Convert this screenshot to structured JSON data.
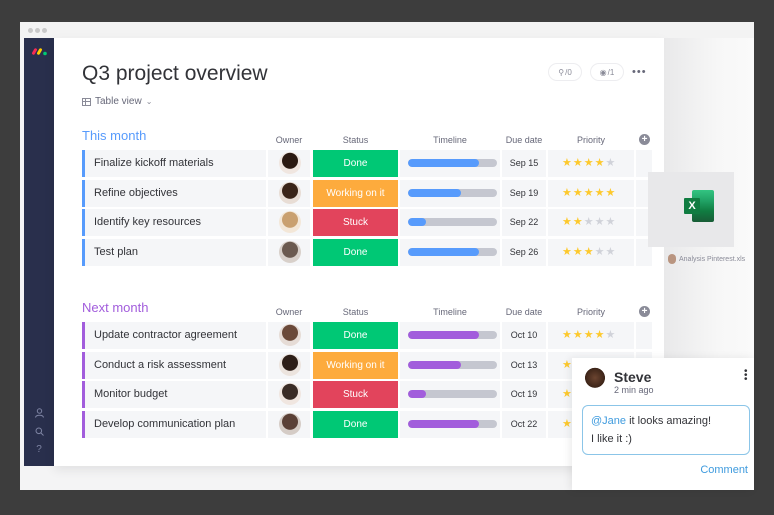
{
  "window": {
    "title": "Q3 project overview",
    "view_label": "Table view"
  },
  "header": {
    "activity_count": "/0",
    "viewers_count": "/1",
    "more_label": "•••"
  },
  "sidebar": {
    "icons": [
      "person-icon",
      "search-icon",
      "help-icon"
    ],
    "help_glyph": "?"
  },
  "columns": {
    "owner": "Owner",
    "status": "Status",
    "timeline": "Timeline",
    "due": "Due date",
    "priority": "Priority"
  },
  "colors": {
    "done": "#00c875",
    "working": "#fdab3d",
    "stuck": "#e2445c",
    "this_month": "#579bfc",
    "next_month": "#a25ddc"
  },
  "groups": [
    {
      "title": "This month",
      "color": "#579bfc",
      "rows": [
        {
          "name": "Finalize kickoff materials",
          "status": "Done",
          "timeline_pct": 80,
          "due": "Sep 15",
          "priority": 4
        },
        {
          "name": "Refine objectives",
          "status": "Working on it",
          "timeline_pct": 60,
          "due": "Sep 19",
          "priority": 5
        },
        {
          "name": "Identify key resources",
          "status": "Stuck",
          "timeline_pct": 20,
          "due": "Sep 22",
          "priority": 2
        },
        {
          "name": "Test plan",
          "status": "Done",
          "timeline_pct": 80,
          "due": "Sep 26",
          "priority": 3
        }
      ]
    },
    {
      "title": "Next month",
      "color": "#a25ddc",
      "rows": [
        {
          "name": "Update contractor agreement",
          "status": "Done",
          "timeline_pct": 80,
          "due": "Oct 10",
          "priority": 4
        },
        {
          "name": "Conduct a risk assessment",
          "status": "Working on it",
          "timeline_pct": 60,
          "due": "Oct 13",
          "priority": 1
        },
        {
          "name": "Monitor budget",
          "status": "Stuck",
          "timeline_pct": 20,
          "due": "Oct 19",
          "priority": 1
        },
        {
          "name": "Develop communication plan",
          "status": "Done",
          "timeline_pct": 80,
          "due": "Oct 22",
          "priority": 1
        }
      ]
    }
  ],
  "attachment": {
    "icon": "excel-icon",
    "letter": "X",
    "filename": "Analysis Pinterest.xls"
  },
  "comment": {
    "author": "Steve",
    "time": "2 min ago",
    "mention": "@Jane",
    "text_line1": " it looks amazing!",
    "text_line2": "I like it :)",
    "button": "Comment"
  }
}
